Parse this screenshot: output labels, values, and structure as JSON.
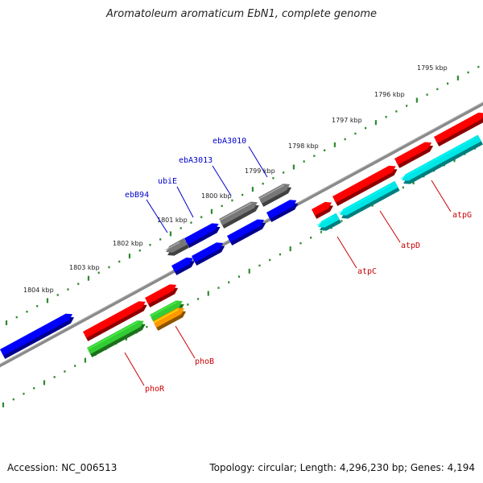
{
  "header": {
    "title": "Aromatoleum aromaticum EbN1, complete genome"
  },
  "footer": {
    "accession": "Accession: NC_006513",
    "summary": "Topology: circular; Length: 4,296,230 bp; Genes: 4,194"
  },
  "colors": {
    "backbone": "#8a8a8a",
    "ruler": "#2e8b2e",
    "label_blue": "#0000cc",
    "label_red": "#cc0000",
    "gene_blue": "#0000ff",
    "gene_gray": "#777777",
    "gene_red": "#ff0000",
    "gene_cyan": "#00e5e5",
    "gene_green": "#33cc33",
    "gene_orange": "#ff9900"
  },
  "ruler": {
    "tick_labels": [
      "1795 kbp",
      "1796 kbp",
      "1797 kbp",
      "1798 kbp",
      "1799 kbp",
      "1800 kbp",
      "1801 kbp",
      "1802 kbp",
      "1803 kbp",
      "1804 kbp"
    ]
  },
  "gene_labels": [
    {
      "name": "ebB94",
      "color": "label_blue"
    },
    {
      "name": "ubiE",
      "color": "label_blue"
    },
    {
      "name": "ebA3013",
      "color": "label_blue"
    },
    {
      "name": "ebA3010",
      "color": "label_blue"
    },
    {
      "name": "atpG",
      "color": "label_red"
    },
    {
      "name": "atpD",
      "color": "label_red"
    },
    {
      "name": "atpC",
      "color": "label_red"
    },
    {
      "name": "phoB",
      "color": "label_red"
    },
    {
      "name": "phoR",
      "color": "label_red"
    }
  ]
}
